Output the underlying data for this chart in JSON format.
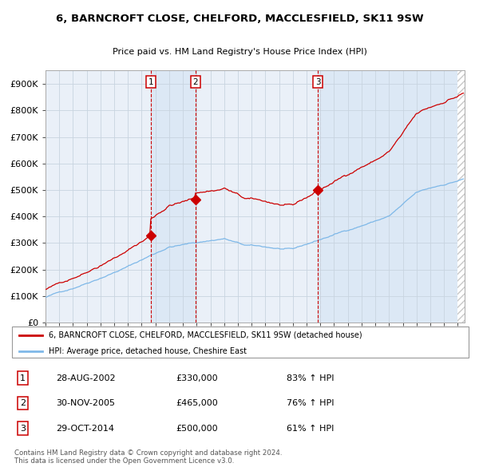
{
  "title1": "6, BARNCROFT CLOSE, CHELFORD, MACCLESFIELD, SK11 9SW",
  "title2": "Price paid vs. HM Land Registry's House Price Index (HPI)",
  "legend_red": "6, BARNCROFT CLOSE, CHELFORD, MACCLESFIELD, SK11 9SW (detached house)",
  "legend_blue": "HPI: Average price, detached house, Cheshire East",
  "footnote": "Contains HM Land Registry data © Crown copyright and database right 2024.\nThis data is licensed under the Open Government Licence v3.0.",
  "transactions": [
    {
      "num": 1,
      "date": "28-AUG-2002",
      "price": 330000,
      "pct": "83%",
      "x_year": 2002.65
    },
    {
      "num": 2,
      "date": "30-NOV-2005",
      "price": 465000,
      "pct": "76%",
      "x_year": 2005.92
    },
    {
      "num": 3,
      "date": "29-OCT-2014",
      "price": 500000,
      "pct": "61%",
      "x_year": 2014.83
    }
  ],
  "x_start": 1995.0,
  "x_end": 2025.5,
  "y_min": 0,
  "y_max": 950000,
  "yticks": [
    0,
    100000,
    200000,
    300000,
    400000,
    500000,
    600000,
    700000,
    800000,
    900000
  ],
  "ytick_labels": [
    "£0",
    "£100K",
    "£200K",
    "£300K",
    "£400K",
    "£500K",
    "£600K",
    "£700K",
    "£800K",
    "£900K"
  ],
  "xticks": [
    1995,
    1996,
    1997,
    1998,
    1999,
    2000,
    2001,
    2002,
    2003,
    2004,
    2005,
    2006,
    2007,
    2008,
    2009,
    2010,
    2011,
    2012,
    2013,
    2014,
    2015,
    2016,
    2017,
    2018,
    2019,
    2020,
    2021,
    2022,
    2023,
    2024,
    2025
  ],
  "red_color": "#cc0000",
  "blue_color": "#7eb8e8",
  "shade_color": "#dce8f5",
  "grid_color": "#c8d4e0",
  "plot_bg": "#eaf0f8",
  "hatch_color": "#c8c8c8"
}
